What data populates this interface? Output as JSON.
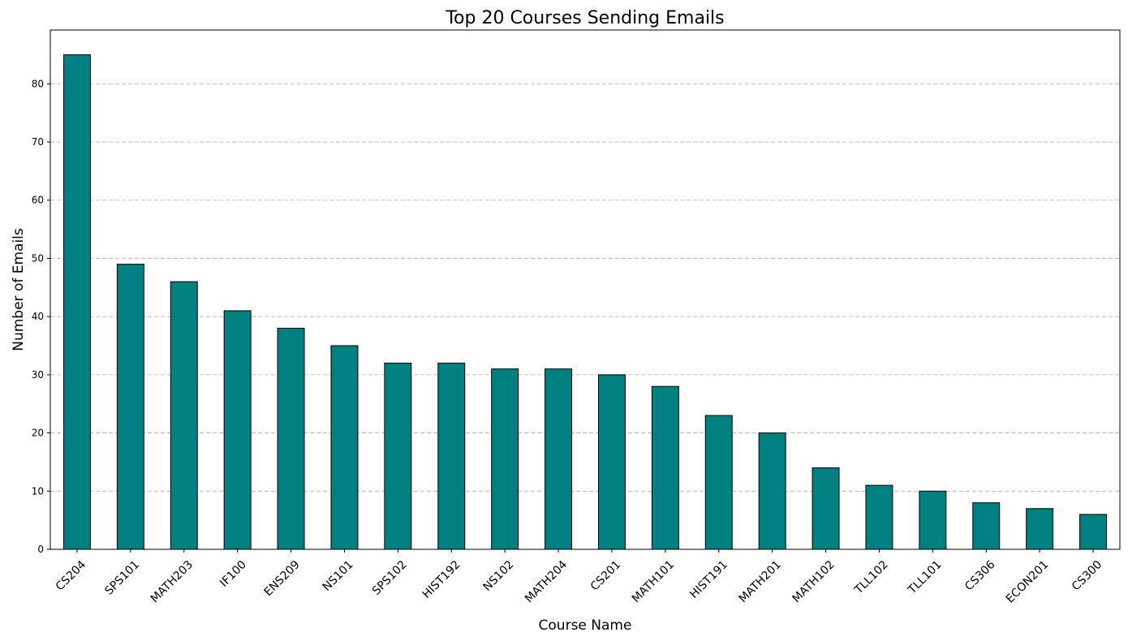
{
  "chart_data": {
    "type": "bar",
    "title": "Top 20 Courses Sending Emails",
    "xlabel": "Course Name",
    "ylabel": "Number of Emails",
    "categories": [
      "CS204",
      "SPS101",
      "MATH203",
      "IF100",
      "ENS209",
      "NS101",
      "SPS102",
      "HIST192",
      "NS102",
      "MATH204",
      "CS201",
      "MATH101",
      "HIST191",
      "MATH201",
      "MATH102",
      "TLL102",
      "TLL101",
      "CS306",
      "ECON201",
      "CS300"
    ],
    "values": [
      85,
      49,
      46,
      41,
      38,
      35,
      32,
      32,
      31,
      31,
      30,
      28,
      23,
      20,
      14,
      11,
      10,
      8,
      7,
      6
    ],
    "ylim": [
      0,
      89.25
    ],
    "yticks": [
      0,
      10,
      20,
      30,
      40,
      50,
      60,
      70,
      80
    ],
    "grid": "y-dashed",
    "legend": "none",
    "colors": {
      "bar_fill": "#008080",
      "bar_edge": "#000000",
      "grid": "#b0b0b0"
    }
  }
}
